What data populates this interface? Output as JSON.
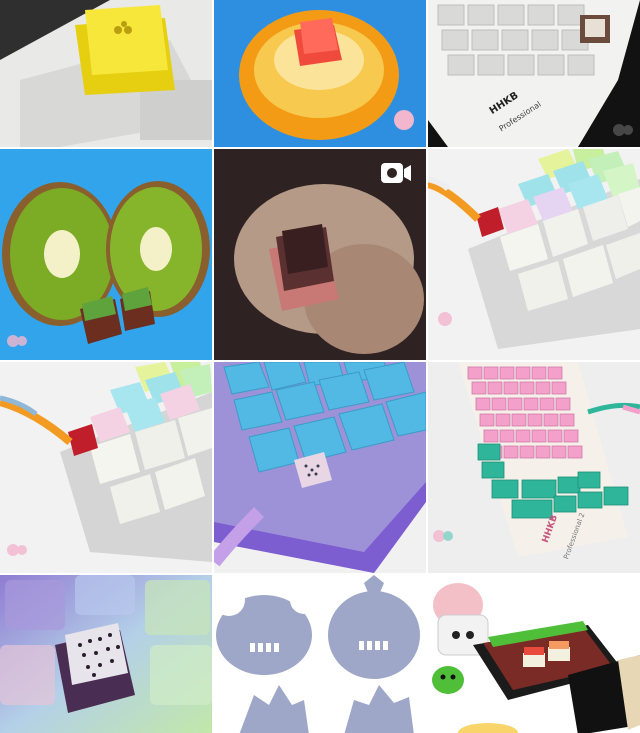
{
  "grid": {
    "tiles": [
      {
        "id": "tile-yellow-keycap",
        "icon": "photo",
        "bg": "#2b2b2b",
        "accent": "#f2de2a"
      },
      {
        "id": "tile-orange-keycap",
        "icon": "photo",
        "bg": "#2e8fe0",
        "accent": "#f49b16"
      },
      {
        "id": "tile-hhkb-keyboard",
        "icon": "photo",
        "bg": "#111111",
        "accent": "#f3f3f3",
        "label_top": "HHKB",
        "label_bottom": "Professional"
      },
      {
        "id": "tile-kiwi-keycap",
        "icon": "photo",
        "bg": "#2ea3ea",
        "accent": "#7cab26"
      },
      {
        "id": "tile-hand-keycap-video",
        "icon": "video-camera",
        "bg": "#3a2a2a",
        "accent": "#d4837e"
      },
      {
        "id": "tile-pastel-keyboard",
        "icon": "photo",
        "bg": "#f2f2f2",
        "accent": "#9fe2e9"
      },
      {
        "id": "tile-pastel-keyboard-2",
        "icon": "photo",
        "bg": "#f2f2f2",
        "accent": "#f4d2e3"
      },
      {
        "id": "tile-blue-keyboard",
        "icon": "photo",
        "bg": "#7c5ed1",
        "accent": "#52b8e4"
      },
      {
        "id": "tile-pink-teal-keyboard",
        "icon": "photo",
        "bg": "#eeeeee",
        "accent": "#f3a0cb",
        "label_top": "HHKB",
        "label_bottom": "Professional 2"
      },
      {
        "id": "tile-dragonfruit-keycap",
        "icon": "photo",
        "bg": "#8a76c4",
        "accent": "#5a3b62"
      },
      {
        "id": "tile-mascot-silhouettes",
        "icon": "photo",
        "bg": "#ffffff",
        "accent": "#9ea7c8"
      },
      {
        "id": "tile-sushi-box",
        "icon": "photo",
        "bg": "#ffffff",
        "accent": "#1b1b1b"
      }
    ]
  }
}
